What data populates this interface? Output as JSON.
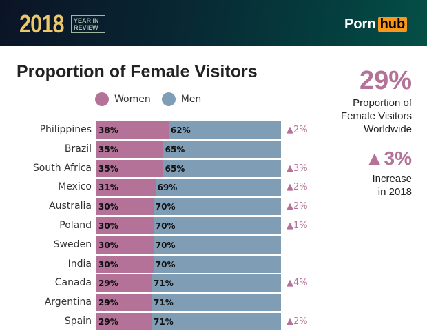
{
  "header": {
    "year": "2018",
    "tag_line1": "YEAR IN",
    "tag_line2": "REVIEW",
    "logo_a": "Porn",
    "logo_b": "hub"
  },
  "chart_data": {
    "type": "bar",
    "title": "Proportion of Female Visitors",
    "legend": [
      {
        "name": "Women",
        "color": "#b47299"
      },
      {
        "name": "Men",
        "color": "#7f9db5"
      }
    ],
    "categories": [
      "Philippines",
      "Brazil",
      "South Africa",
      "Mexico",
      "Australia",
      "Poland",
      "Sweden",
      "India",
      "Canada",
      "Argentina",
      "Spain"
    ],
    "series": [
      {
        "name": "Women",
        "values": [
          38,
          35,
          35,
          31,
          30,
          30,
          30,
          30,
          29,
          29,
          29
        ]
      },
      {
        "name": "Men",
        "values": [
          62,
          65,
          65,
          69,
          70,
          70,
          70,
          70,
          71,
          71,
          71
        ]
      }
    ],
    "change": [
      "▲2%",
      "",
      "▲3%",
      "▲2%",
      "▲2%",
      "▲1%",
      "",
      "",
      "▲4%",
      "",
      "▲2%"
    ],
    "stacked": true,
    "xlim": [
      0,
      100
    ]
  },
  "summary": {
    "worldwide": "29%",
    "worldwide_l1": "Proportion of",
    "worldwide_l2": "Female Visitors",
    "worldwide_l3": "Worldwide",
    "increase": "▲3%",
    "increase_l1": "Increase",
    "increase_l2": "in 2018"
  }
}
